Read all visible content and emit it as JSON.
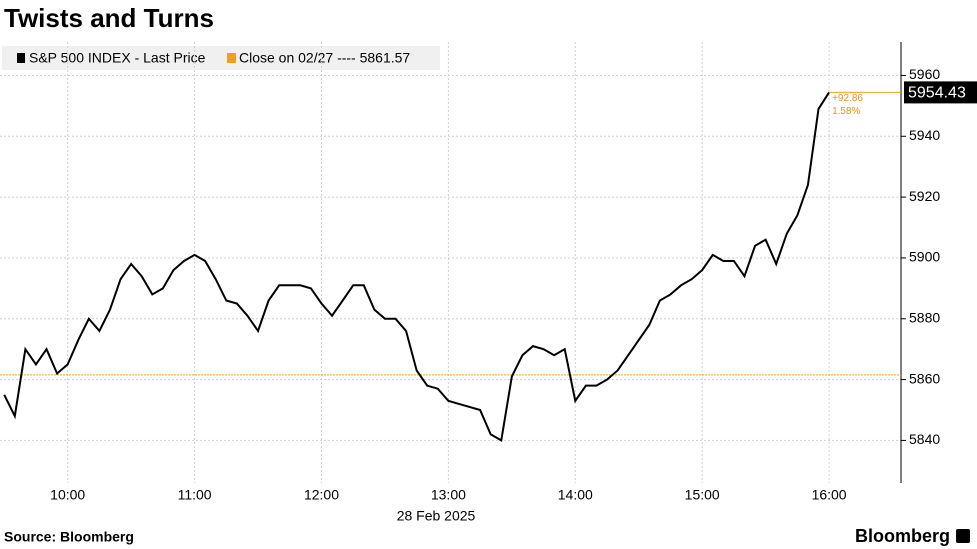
{
  "chart_data": {
    "type": "line",
    "title": "Twists and Turns",
    "xlabel": "28 Feb 2025",
    "source": "Source: Bloomberg",
    "brand": "Bloomberg",
    "x": [
      "09:30",
      "09:35",
      "09:40",
      "09:45",
      "09:50",
      "09:55",
      "10:00",
      "10:05",
      "10:10",
      "10:15",
      "10:20",
      "10:25",
      "10:30",
      "10:35",
      "10:40",
      "10:45",
      "10:50",
      "10:55",
      "11:00",
      "11:05",
      "11:10",
      "11:15",
      "11:20",
      "11:25",
      "11:30",
      "11:35",
      "11:40",
      "11:45",
      "11:50",
      "11:55",
      "12:00",
      "12:05",
      "12:10",
      "12:15",
      "12:20",
      "12:25",
      "12:30",
      "12:35",
      "12:40",
      "12:45",
      "12:50",
      "12:55",
      "13:00",
      "13:05",
      "13:10",
      "13:15",
      "13:20",
      "13:25",
      "13:30",
      "13:35",
      "13:40",
      "13:45",
      "13:50",
      "13:55",
      "14:00",
      "14:05",
      "14:10",
      "14:15",
      "14:20",
      "14:25",
      "14:30",
      "14:35",
      "14:40",
      "14:45",
      "14:50",
      "14:55",
      "15:00",
      "15:05",
      "15:10",
      "15:15",
      "15:20",
      "15:25",
      "15:30",
      "15:35",
      "15:40",
      "15:45",
      "15:50",
      "15:55",
      "16:00"
    ],
    "series": [
      {
        "name": "S&P 500 INDEX - Last Price",
        "color": "#000000",
        "values": [
          5855,
          5848,
          5870,
          5865,
          5870,
          5862,
          5865,
          5873,
          5880,
          5876,
          5883,
          5893,
          5898,
          5894,
          5888,
          5890,
          5896,
          5899,
          5901,
          5899,
          5893,
          5886,
          5885,
          5881,
          5876,
          5886,
          5891,
          5891,
          5891,
          5890,
          5885,
          5881,
          5886,
          5891,
          5891,
          5883,
          5880,
          5880,
          5876,
          5863,
          5858,
          5857,
          5853,
          5852,
          5851,
          5850,
          5842,
          5840,
          5861,
          5868,
          5871,
          5870,
          5868,
          5870,
          5853,
          5858,
          5858,
          5860,
          5863,
          5868,
          5873,
          5878,
          5886,
          5888,
          5891,
          5893,
          5896,
          5901,
          5899,
          5899,
          5894,
          5904,
          5906,
          5898,
          5908,
          5914,
          5924,
          5949,
          5954.43
        ]
      }
    ],
    "reference_line": {
      "value": 5861.57,
      "label": "Close on 02/27 ---- 5861.57",
      "color": "#f0a020"
    },
    "last_price_label": "5954.43",
    "change_labels": [
      "+92.86",
      "1.58%"
    ],
    "xlim": [
      "09:28",
      "16:34"
    ],
    "xticks": [
      "10:00",
      "11:00",
      "12:00",
      "13:00",
      "14:00",
      "15:00",
      "16:00"
    ],
    "ylim": [
      5826,
      5971
    ],
    "yticks": [
      5840,
      5860,
      5880,
      5900,
      5920,
      5940,
      5960
    ],
    "grid": true
  }
}
